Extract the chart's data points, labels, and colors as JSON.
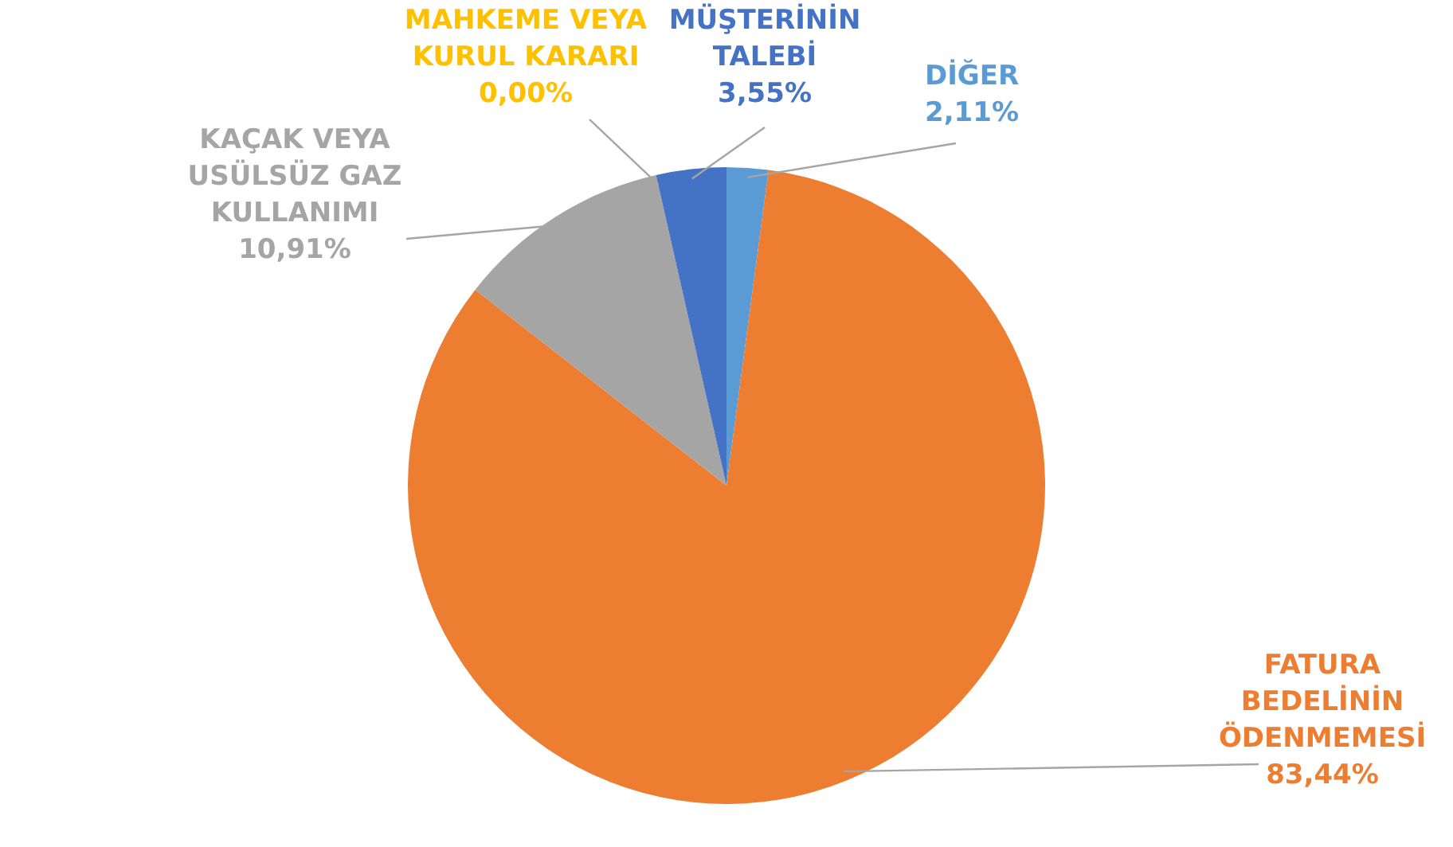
{
  "chart_data": {
    "type": "pie",
    "categories": [
      "DİĞER",
      "FATURA BEDELİNİN ÖDENMEMESİ",
      "KAÇAK VEYA USÜLSÜZ GAZ KULLANIMI",
      "MAHKEME VEYA KURUL KARARI",
      "MÜŞTERİNİN TALEBİ"
    ],
    "values": [
      2.11,
      83.44,
      10.91,
      0.0,
      3.55
    ],
    "value_labels": [
      "2,11%",
      "83,44%",
      "10,91%",
      "0,00%",
      "3,55%"
    ],
    "colors": [
      "#5b9bd5",
      "#ed7d31",
      "#a5a5a5",
      "#ffc000",
      "#4472c4"
    ]
  }
}
